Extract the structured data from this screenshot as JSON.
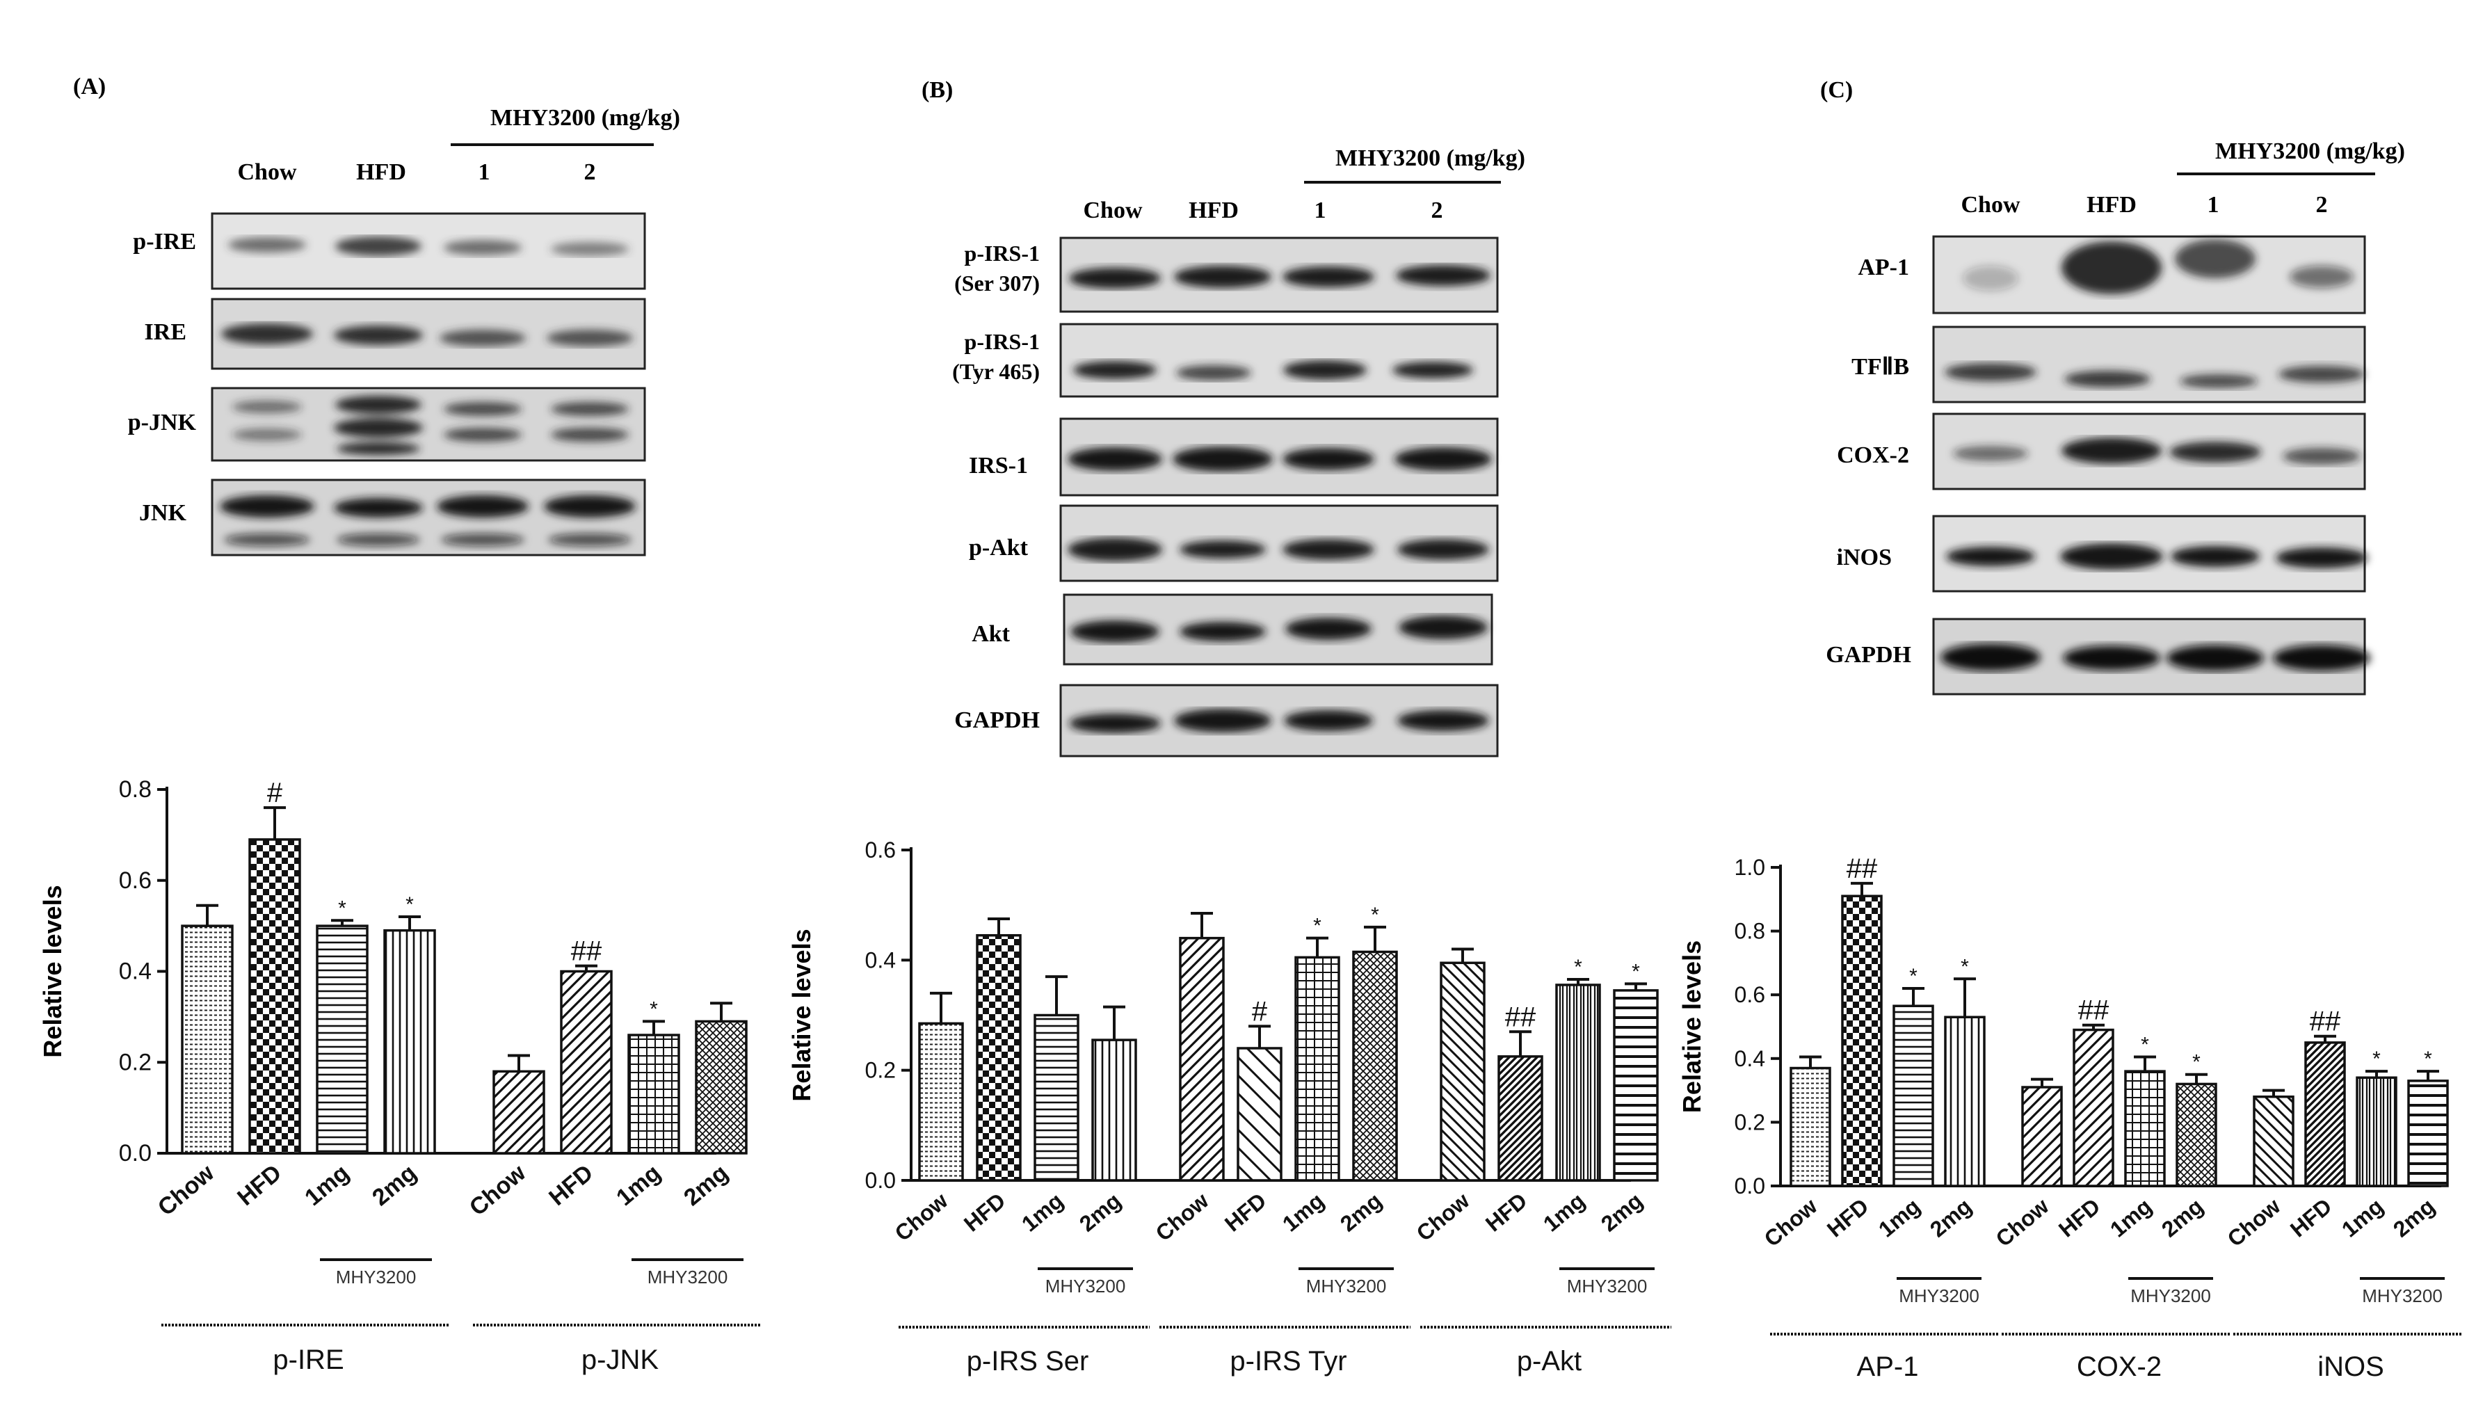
{
  "panels": [
    {
      "id": "A",
      "label": "(A)",
      "treatment_header": "MHY3200 (mg/kg)",
      "lanes": [
        "Chow",
        "HFD",
        "1",
        "2"
      ],
      "blot_labels": [
        "p-IRE",
        "IRE",
        "p-JNK",
        "JNK"
      ]
    },
    {
      "id": "B",
      "label": "(B)",
      "treatment_header": "MHY3200 (mg/kg)",
      "lanes": [
        "Chow",
        "HFD",
        "1",
        "2"
      ],
      "blot_labels": [
        [
          "p-IRS-1",
          "(Ser 307)"
        ],
        [
          "p-IRS-1",
          "(Tyr 465)"
        ],
        [
          "IRS-1"
        ],
        [
          "p-Akt"
        ],
        [
          "Akt"
        ],
        [
          "GAPDH"
        ]
      ]
    },
    {
      "id": "C",
      "label": "(C)",
      "treatment_header": "MHY3200 (mg/kg)",
      "lanes": [
        "Chow",
        "HFD",
        "1",
        "2"
      ],
      "blot_labels": [
        "AP-1",
        "TFⅡB",
        "COX-2",
        "iNOS",
        "GAPDH"
      ]
    }
  ],
  "chart_data": [
    {
      "type": "bar",
      "ylabel": "Relative levels",
      "ylim": [
        0,
        0.8
      ],
      "yticks": [
        "0.0",
        "0.2",
        "0.4",
        "0.6",
        "0.8"
      ],
      "treatment_label": "MHY3200",
      "groups": [
        {
          "name": "p-IRE",
          "categories": [
            "Chow",
            "HFD",
            "1mg",
            "2mg"
          ],
          "values": [
            0.5,
            0.69,
            0.5,
            0.49
          ],
          "errors": [
            0.045,
            0.07,
            0.012,
            0.03
          ],
          "marks": [
            "",
            "#",
            "*",
            "*"
          ]
        },
        {
          "name": "p-JNK",
          "categories": [
            "Chow",
            "HFD",
            "1mg",
            "2mg"
          ],
          "values": [
            0.18,
            0.4,
            0.26,
            0.29
          ],
          "errors": [
            0.035,
            0.012,
            0.03,
            0.04
          ],
          "marks": [
            "",
            "##",
            "*",
            ""
          ]
        }
      ]
    },
    {
      "type": "bar",
      "ylabel": "Relative levels",
      "ylim": [
        0,
        0.6
      ],
      "yticks": [
        "0.0",
        "0.2",
        "0.4",
        "0.6"
      ],
      "treatment_label": "MHY3200",
      "groups": [
        {
          "name": "p-IRS Ser",
          "categories": [
            "Chow",
            "HFD",
            "1mg",
            "2mg"
          ],
          "values": [
            0.285,
            0.445,
            0.3,
            0.255
          ],
          "errors": [
            0.055,
            0.03,
            0.07,
            0.06
          ],
          "marks": [
            "",
            "",
            "",
            ""
          ]
        },
        {
          "name": "p-IRS Tyr",
          "categories": [
            "Chow",
            "HFD",
            "1mg",
            "2mg"
          ],
          "values": [
            0.44,
            0.24,
            0.405,
            0.415
          ],
          "errors": [
            0.045,
            0.04,
            0.035,
            0.045
          ],
          "marks": [
            "",
            "#",
            "*",
            "*"
          ]
        },
        {
          "name": "p-Akt",
          "categories": [
            "Chow",
            "HFD",
            "1mg",
            "2mg"
          ],
          "values": [
            0.395,
            0.225,
            0.355,
            0.345
          ],
          "errors": [
            0.025,
            0.045,
            0.01,
            0.012
          ],
          "marks": [
            "",
            "##",
            "*",
            "*"
          ]
        }
      ]
    },
    {
      "type": "bar",
      "ylabel": "Relative levels",
      "ylim": [
        0,
        1.0
      ],
      "yticks": [
        "0.0",
        "0.2",
        "0.4",
        "0.6",
        "0.8",
        "1.0"
      ],
      "treatment_label": "MHY3200",
      "groups": [
        {
          "name": "AP-1",
          "categories": [
            "Chow",
            "HFD",
            "1mg",
            "2mg"
          ],
          "values": [
            0.37,
            0.91,
            0.565,
            0.53
          ],
          "errors": [
            0.035,
            0.04,
            0.055,
            0.12
          ],
          "marks": [
            "",
            "##",
            "*",
            "*"
          ]
        },
        {
          "name": "COX-2",
          "categories": [
            "Chow",
            "HFD",
            "1mg",
            "2mg"
          ],
          "values": [
            0.31,
            0.49,
            0.36,
            0.32
          ],
          "errors": [
            0.025,
            0.015,
            0.045,
            0.03
          ],
          "marks": [
            "",
            "##",
            "*",
            "*"
          ]
        },
        {
          "name": "iNOS",
          "categories": [
            "Chow",
            "HFD",
            "1mg",
            "2mg"
          ],
          "values": [
            0.28,
            0.45,
            0.34,
            0.33
          ],
          "errors": [
            0.02,
            0.02,
            0.02,
            0.03
          ],
          "marks": [
            "",
            "##",
            "*",
            "*"
          ]
        }
      ]
    }
  ]
}
